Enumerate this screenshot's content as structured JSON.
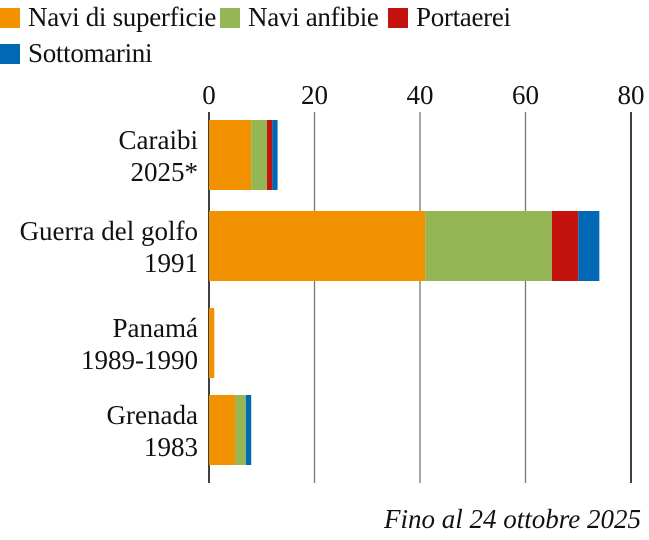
{
  "chart_data": {
    "type": "bar",
    "orientation": "horizontal",
    "stacked": true,
    "title": "",
    "xlabel": "",
    "ylabel": "",
    "xlim": [
      0,
      80
    ],
    "xticks": [
      0,
      20,
      40,
      60,
      80
    ],
    "grid": true,
    "legend_position": "top",
    "categories": [
      {
        "line1": "Caraibi",
        "line2": "2025*"
      },
      {
        "line1": "Guerra del golfo",
        "line2": "1991"
      },
      {
        "line1": "Panamá",
        "line2": "1989-1990"
      },
      {
        "line1": "Grenada",
        "line2": "1983"
      }
    ],
    "series": [
      {
        "name": "Navi di superficie",
        "color": "#f39200",
        "values": [
          8,
          41,
          1,
          5
        ]
      },
      {
        "name": "Navi anfibie",
        "color": "#94b654",
        "values": [
          3,
          24,
          0,
          2
        ]
      },
      {
        "name": "Portaerei",
        "color": "#c4120f",
        "values": [
          1,
          5,
          0,
          0
        ]
      },
      {
        "name": "Sottomarini",
        "color": "#0068b4",
        "values": [
          1,
          4,
          0,
          1
        ]
      }
    ],
    "note": "Fino al 24 ottobre 2025"
  }
}
